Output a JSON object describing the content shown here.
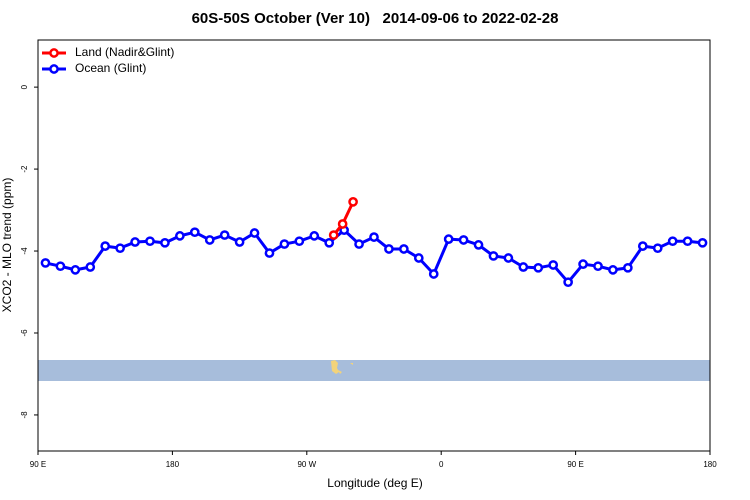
{
  "chart_data": {
    "type": "line",
    "title": "60S-50S October (Ver 10)   2014-09-06 to 2022-02-28",
    "x_label": "Longitude (deg E)",
    "y_label": "XCO2 - MLO trend (ppm)",
    "xlim": [
      90,
      540
    ],
    "ylim": [
      -8.88,
      1.15
    ],
    "xticks": [
      {
        "value": 90,
        "label": "90 E"
      },
      180,
      {
        "value": 270,
        "label": "90 W"
      },
      {
        "value": 360,
        "label": "0"
      },
      {
        "value": 450,
        "label": "90 E"
      },
      {
        "value": 540,
        "label": "180"
      }
    ],
    "yticks": [
      0,
      -2,
      -4,
      -6,
      -8
    ],
    "legend": "top-left",
    "series": [
      {
        "name": "Land (Nadir&Glint)",
        "color": "#ff0000",
        "x": [
          288,
          294,
          301
        ],
        "values": [
          -3.61,
          -3.34,
          -2.8
        ]
      },
      {
        "name": "Ocean (Glint)",
        "color": "#0000ff",
        "x": [
          95,
          105,
          115,
          125,
          135,
          145,
          155,
          165,
          175,
          185,
          195,
          205,
          215,
          225,
          235,
          245,
          255,
          265,
          275,
          285,
          295,
          305,
          315,
          325,
          335,
          345,
          355,
          365,
          375,
          385,
          395,
          405,
          415,
          425,
          435,
          445,
          455,
          465,
          475,
          485,
          495,
          505,
          515,
          525,
          535
        ],
        "values": [
          -4.29,
          -4.37,
          -4.46,
          -4.39,
          -3.88,
          -3.93,
          -3.78,
          -3.76,
          -3.8,
          -3.63,
          -3.54,
          -3.73,
          -3.61,
          -3.78,
          -3.56,
          -4.05,
          -3.83,
          -3.76,
          -3.63,
          -3.8,
          -3.49,
          -3.83,
          -3.66,
          -3.95,
          -3.95,
          -4.17,
          -4.56,
          -3.71,
          -3.73,
          -3.85,
          -4.12,
          -4.17,
          -4.39,
          -4.41,
          -4.34,
          -4.76,
          -4.32,
          -4.37,
          -4.46,
          -4.41,
          -3.88,
          -3.93,
          -3.76,
          -3.76,
          -3.8
        ]
      }
    ]
  }
}
